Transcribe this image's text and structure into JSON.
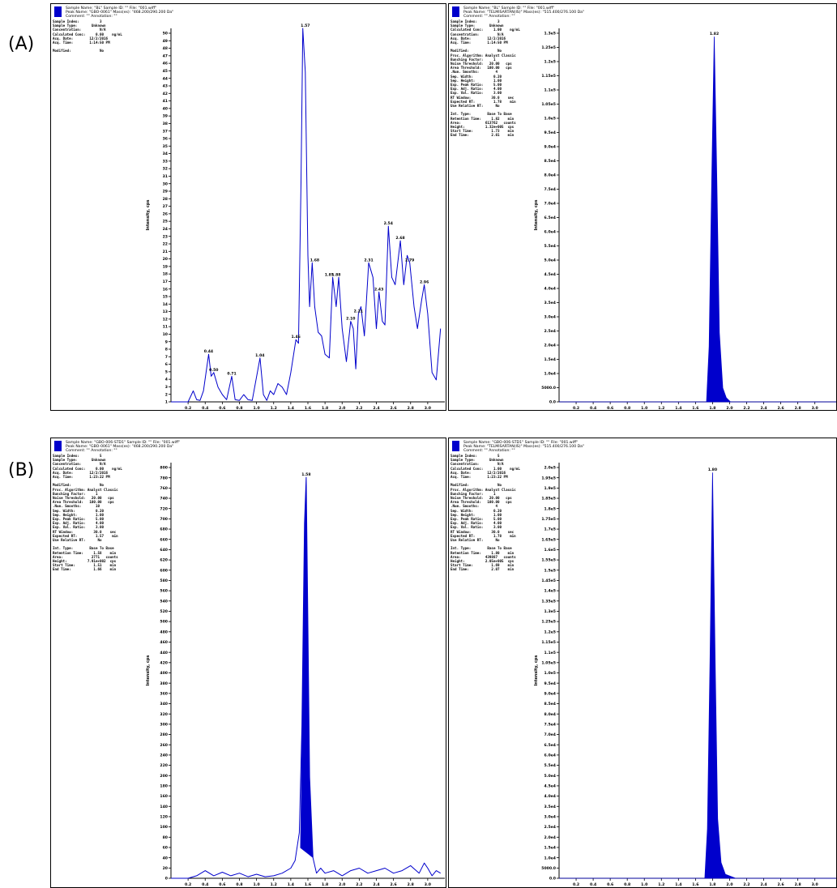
{
  "labels": {
    "a": "(A)",
    "b": "(B)"
  },
  "panels": [
    {
      "id": "A-left",
      "header": [
        "Sample Name: \"BL\"   Sample ID: \"\"   File: \"001.wiff\"",
        "Peak Name: \"GBO-0061\"   Mass(es): \"468.200/290.200 Da\"",
        "Comment: \"\"   Annotation: \"\""
      ],
      "info": [
        "Sample Index:          3",
        "Sample Type:       Unknown",
        "Concentration:         N/A",
        "Calculated Conc:     0.00    ng/mL",
        "Acq. Date:        12/2/2016",
        "Acq. Time:        1:14:50 PM",
        "",
        "Modified:              No"
      ],
      "y_ticks": [
        "1",
        "2",
        "3",
        "4",
        "5",
        "6",
        "7",
        "8",
        "9",
        "10",
        "11",
        "12",
        "13",
        "14",
        "15",
        "16",
        "17",
        "18",
        "19",
        "20",
        "21",
        "22",
        "23",
        "24",
        "25",
        "26",
        "27",
        "28",
        "29",
        "30",
        "31",
        "32",
        "33",
        "34",
        "35",
        "36",
        "37",
        "38",
        "39",
        "40",
        "41",
        "42",
        "43",
        "44",
        "45",
        "46",
        "47",
        "48",
        "49",
        "50"
      ],
      "x_ticks": [
        "0.2",
        "0.4",
        "0.6",
        "0.8",
        "1.0",
        "1.2",
        "1.4",
        "1.6",
        "1.8",
        "2.0",
        "2.2",
        "2.4",
        "2.6",
        "2.8",
        "3.0"
      ],
      "ylabel": "Intensity, cps",
      "xlabel": "Time, min"
    },
    {
      "id": "A-right",
      "header": [
        "Sample Name: \"BL\"   Sample ID: \"\"   File: \"001.wiff\"",
        "Peak Name: \"TELMISARTAN(IS)\"   Mass(es): \"515.400/276.100 Da\"",
        "Comment: \"\"   Annotation: \"\""
      ],
      "info": [
        "Sample Index:          3",
        "Sample Type:       Unknown",
        "Calculated Conc:     1.00    ng/mL",
        "Concentration:         N/A",
        "Acq. Date:        12/2/2016",
        "Acq. Time:        1:14:50 PM",
        "",
        "Modified:              No",
        "Proc. Algorithm: Analyst Classic",
        "Bunching Factor:     1",
        "Noise Threshold:   20.00   cps",
        "Area Threshold:   100.00   cps",
        ".Num. Smooths:        4",
        "Sep. Width:          0.20",
        "Sep. Height:         1.00",
        "Exp. Peak Ratio:     5.00",
        "Exp. Adj. Ratio:     4.00",
        "Exp. Val. Ratio:     3.00",
        "RT Window:          30.0    sec",
        "Expected RT:         1.78    min",
        "Use Relative RT:      No",
        "",
        "Int. Type:        Base To Base",
        "Retention Time:     1.82    min",
        "Area:            613762   counts",
        "Height:          1.32e+005  cps",
        "Start Time:         1.73    min",
        "End Time:           2.01    min"
      ],
      "y_ticks": [
        "0.0",
        "5000.0",
        "1.0e4",
        "1.5e4",
        "2.0e4",
        "2.5e4",
        "3.0e4",
        "3.5e4",
        "4.0e4",
        "4.5e4",
        "5.0e4",
        "5.5e4",
        "6.0e4",
        "6.5e4",
        "7.0e4",
        "7.5e4",
        "8.0e4",
        "8.5e4",
        "9.0e4",
        "9.5e4",
        "1.0e5",
        "1.05e5",
        "1.1e5",
        "1.15e5",
        "1.2e5",
        "1.25e5",
        "1.3e5"
      ],
      "x_ticks": [
        "0.2",
        "0.4",
        "0.6",
        "0.8",
        "1.0",
        "1.2",
        "1.4",
        "1.6",
        "1.8",
        "2.0",
        "2.2",
        "2.4",
        "2.6",
        "2.8",
        "3.0"
      ],
      "ylabel": "Intensity, cps",
      "xlabel": "Time, min"
    },
    {
      "id": "B-left",
      "header": [
        "Sample Name: \"GBO-006-STD1\"   Sample ID: \"\"   File: \"001.wiff\"",
        "Peak Name: \"GBO-0061\"   Mass(es): \"468.200/290.200 Da\"",
        "Comment: \"\"   Annotation: \"\""
      ],
      "info": [
        "Sample Index:          5",
        "Sample Type:       Unknown",
        "Concentration:         N/A",
        "Calculated Conc:     0.00    ng/mL",
        "Acq. Date:        12/2/2016",
        "Acq. Time:        1:23:22 PM",
        "",
        "Modified:              No",
        "Proc. Algorithm: Analyst Classic",
        "Bunching Factor:     1",
        "Noise Threshold:   20.00   cps",
        "Area Threshold:   100.00   cps",
        ".Num. Smooths:       10",
        "Sep. Width:          0.20",
        "Sep. Height:         1.00",
        "Exp. Peak Ratio:     5.00",
        "Exp. Adj. Ratio:     4.00",
        "Exp. Val. Ratio:     3.00",
        "RT Window:          30.0    sec",
        "Expected RT:         1.57    min",
        "Use Relative RT:      No",
        "",
        "Int. Type:        Base To Base",
        "Retention Time:     1.58    min",
        "Area:              2771   counts",
        "Height:          7.91e+002  cps",
        "Start Time:         1.51    min",
        "End Time:           1.66    min"
      ],
      "y_ticks": [
        "0",
        "20",
        "40",
        "60",
        "80",
        "100",
        "120",
        "140",
        "160",
        "180",
        "200",
        "220",
        "240",
        "260",
        "280",
        "300",
        "320",
        "340",
        "360",
        "380",
        "400",
        "420",
        "440",
        "460",
        "480",
        "500",
        "520",
        "540",
        "560",
        "580",
        "600",
        "620",
        "640",
        "660",
        "680",
        "700",
        "720",
        "740",
        "760",
        "780",
        "800"
      ],
      "x_ticks": [
        "0.2",
        "0.4",
        "0.6",
        "0.8",
        "1.0",
        "1.2",
        "1.4",
        "1.6",
        "1.8",
        "2.0",
        "2.2",
        "2.4",
        "2.6",
        "2.8",
        "3.0"
      ],
      "ylabel": "Intensity, cps",
      "xlabel": "Time, min"
    },
    {
      "id": "B-right",
      "header": [
        "Sample Name: \"GBO-006-STD1\"   Sample ID: \"\"   File: \"001.wiff\"",
        "Peak Name: \"TELMISARTAN(IS)\"   Mass(es): \"515.400/276.100 Da\"",
        "Comment: \"\"   Annotation: \"\""
      ],
      "info": [
        "Sample Index:          5",
        "Sample Type:       Unknown",
        "Concentration:         N/A",
        "Calculated Conc:     1.00    ng/mL",
        "Acq. Date:        12/2/2016",
        "Acq. Time:        1:23:22 PM",
        "",
        "Modified:              No",
        "Proc. Algorithm: Analyst Classic",
        "Bunching Factor:     1",
        "Noise Threshold:   20.00   cps",
        "Area Threshold:   100.00   cps",
        ".Num. Smooths:        4",
        "Sep. Width:          0.20",
        "Sep. Height:         1.00",
        "Exp. Peak Ratio:     5.00",
        "Exp. Adj. Ratio:     4.00",
        "Exp. Val. Ratio:     3.00",
        "RT Window:          30.0    sec",
        "Expected RT:         1.78    min",
        "Use Relative RT:      No",
        "",
        "Int. Type:        Base To Base",
        "Retention Time:     1.80    min",
        "Area:            439887   counts",
        "Height:          2.05e+005  cps",
        "Start Time:         1.69    min",
        "End Time:           2.07    min"
      ],
      "y_ticks": [
        "0.0",
        "5000.0",
        "1.0e4",
        "1.5e4",
        "2.0e4",
        "2.5e4",
        "3.0e4",
        "3.5e4",
        "4.0e4",
        "4.5e4",
        "5.0e4",
        "5.5e4",
        "6.0e4",
        "6.5e4",
        "7.0e4",
        "7.5e4",
        "8.0e4",
        "8.5e4",
        "9.0e4",
        "9.5e4",
        "1.0e5",
        "1.05e5",
        "1.1e5",
        "1.15e5",
        "1.2e5",
        "1.25e5",
        "1.3e5",
        "1.35e5",
        "1.4e5",
        "1.45e5",
        "1.5e5",
        "1.55e5",
        "1.6e5",
        "1.65e5",
        "1.7e5",
        "1.75e5",
        "1.8e5",
        "1.85e5",
        "1.9e5",
        "1.95e5",
        "2.0e5"
      ],
      "x_ticks": [
        "0.2",
        "0.4",
        "0.6",
        "0.8",
        "1.0",
        "1.2",
        "1.4",
        "1.6",
        "1.8",
        "2.0",
        "2.2",
        "2.4",
        "2.6",
        "2.8",
        "3.0"
      ],
      "ylabel": "Intensity, cps",
      "xlabel": "Time, min"
    }
  ],
  "chart_data": [
    {
      "type": "line",
      "xlim": [
        0,
        3.2
      ],
      "ylim": [
        0,
        51
      ],
      "ylabel": "Intensity, cps",
      "xlabel": "Time, min",
      "color": "#0000cc",
      "x": [
        0.0,
        0.1,
        0.2,
        0.26,
        0.3,
        0.34,
        0.38,
        0.44,
        0.47,
        0.5,
        0.55,
        0.6,
        0.65,
        0.71,
        0.75,
        0.8,
        0.85,
        0.9,
        0.95,
        1.04,
        1.08,
        1.12,
        1.16,
        1.2,
        1.25,
        1.3,
        1.35,
        1.4,
        1.46,
        1.49,
        1.52,
        1.54,
        1.57,
        1.6,
        1.62,
        1.65,
        1.68,
        1.72,
        1.76,
        1.8,
        1.85,
        1.89,
        1.93,
        1.96,
        2.0,
        2.05,
        2.1,
        2.13,
        2.16,
        2.19,
        2.22,
        2.26,
        2.31,
        2.36,
        2.4,
        2.43,
        2.47,
        2.5,
        2.54,
        2.58,
        2.62,
        2.68,
        2.72,
        2.76,
        2.79,
        2.84,
        2.88,
        2.93,
        2.96,
        3.0,
        3.05,
        3.1,
        3.15
      ],
      "y": [
        0,
        0,
        0,
        1.5,
        0.3,
        0.2,
        1.5,
        6.5,
        3.5,
        4,
        2,
        1,
        0.3,
        3.5,
        0.3,
        0.2,
        1,
        0.3,
        0.2,
        6,
        1,
        0.2,
        1.5,
        1,
        2.5,
        2,
        1,
        4,
        8.5,
        8,
        30,
        51,
        45,
        20,
        13,
        19,
        13,
        9.5,
        9,
        6.5,
        6,
        17,
        13,
        17,
        10,
        5.5,
        11,
        10,
        4.5,
        12,
        13,
        9,
        19,
        17,
        10,
        15,
        11,
        10.5,
        24,
        17,
        16,
        22,
        16,
        20,
        19,
        13,
        10,
        14,
        16,
        12,
        4,
        3,
        10
      ],
      "annotations": [
        {
          "x": 0.44,
          "y": 6.5,
          "text": "0.44"
        },
        {
          "x": 0.5,
          "y": 4,
          "text": "0.50"
        },
        {
          "x": 0.71,
          "y": 3.5,
          "text": "0.71"
        },
        {
          "x": 1.04,
          "y": 6,
          "text": "1.04"
        },
        {
          "x": 1.46,
          "y": 8.5,
          "text": "1.46"
        },
        {
          "x": 1.57,
          "y": 51,
          "text": "1.57"
        },
        {
          "x": 1.68,
          "y": 19,
          "text": "1.68"
        },
        {
          "x": 1.85,
          "y": 17,
          "text": "1.85"
        },
        {
          "x": 1.93,
          "y": 17,
          "text": "1.88"
        },
        {
          "x": 2.1,
          "y": 11,
          "text": "2.10"
        },
        {
          "x": 2.19,
          "y": 12,
          "text": "2.21"
        },
        {
          "x": 2.31,
          "y": 19,
          "text": "2.31"
        },
        {
          "x": 2.43,
          "y": 15,
          "text": "2.43"
        },
        {
          "x": 2.54,
          "y": 24,
          "text": "2.54"
        },
        {
          "x": 2.68,
          "y": 22,
          "text": "2.68"
        },
        {
          "x": 2.79,
          "y": 19,
          "text": "2.79"
        },
        {
          "x": 2.96,
          "y": 16,
          "text": "2.96"
        }
      ]
    },
    {
      "type": "area",
      "xlim": [
        0,
        3.25
      ],
      "ylim": [
        0,
        135000
      ],
      "ylabel": "Intensity, cps",
      "xlabel": "Time, min",
      "color": "#0000cc",
      "x": [
        0.0,
        1.7,
        1.73,
        1.76,
        1.79,
        1.82,
        1.85,
        1.88,
        1.92,
        1.96,
        2.01,
        3.25
      ],
      "y": [
        0,
        0,
        0,
        20000,
        80000,
        132000,
        80000,
        25000,
        5000,
        1500,
        0,
        0
      ],
      "annotations": [
        {
          "x": 1.82,
          "y": 132000,
          "text": "1.82"
        }
      ]
    },
    {
      "type": "line",
      "xlim": [
        0,
        3.2
      ],
      "ylim": [
        0,
        820
      ],
      "ylabel": "Intensity, cps",
      "xlabel": "Time, min",
      "color": "#0000cc",
      "x": [
        0.0,
        0.2,
        0.3,
        0.4,
        0.5,
        0.6,
        0.7,
        0.8,
        0.9,
        1.0,
        1.1,
        1.2,
        1.3,
        1.4,
        1.45,
        1.5,
        1.53,
        1.56,
        1.58,
        1.6,
        1.62,
        1.66,
        1.7,
        1.75,
        1.8,
        1.9,
        2.0,
        2.1,
        2.2,
        2.3,
        2.4,
        2.5,
        2.6,
        2.7,
        2.8,
        2.9,
        2.96,
        3.0,
        3.05,
        3.1,
        3.15
      ],
      "y": [
        0,
        0,
        5,
        15,
        5,
        12,
        5,
        10,
        3,
        8,
        3,
        5,
        10,
        20,
        35,
        90,
        300,
        700,
        791,
        500,
        200,
        40,
        10,
        20,
        10,
        15,
        5,
        15,
        20,
        10,
        15,
        20,
        10,
        15,
        25,
        10,
        30,
        20,
        5,
        15,
        10
      ],
      "annotations": [
        {
          "x": 1.58,
          "y": 791,
          "text": "1.58"
        }
      ]
    },
    {
      "type": "area",
      "xlim": [
        0,
        3.25
      ],
      "ylim": [
        0,
        210000
      ],
      "ylabel": "Intensity, cps",
      "xlabel": "Time, min",
      "color": "#0000cc",
      "x": [
        0.0,
        1.68,
        1.71,
        1.74,
        1.77,
        1.8,
        1.83,
        1.86,
        1.9,
        1.95,
        2.07,
        3.25
      ],
      "y": [
        0,
        0,
        0,
        25000,
        110000,
        205000,
        110000,
        30000,
        8000,
        2000,
        0,
        0
      ],
      "annotations": [
        {
          "x": 1.8,
          "y": 205000,
          "text": "1.80"
        }
      ]
    }
  ]
}
